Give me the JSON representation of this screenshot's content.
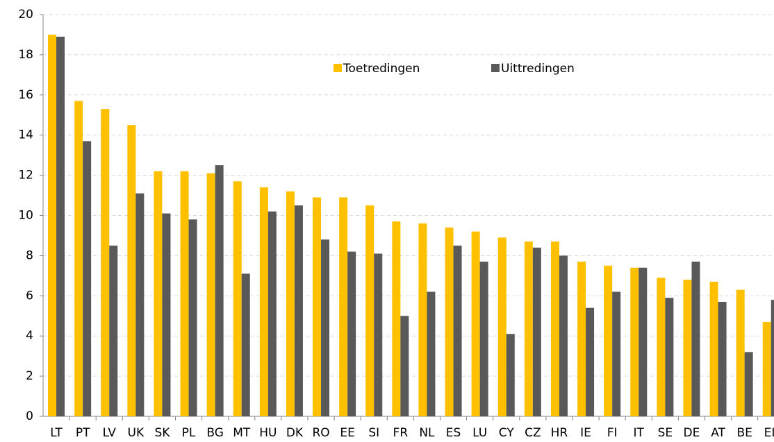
{
  "chart_data": {
    "type": "bar",
    "categories": [
      "LT",
      "PT",
      "LV",
      "UK",
      "SK",
      "PL",
      "BG",
      "MT",
      "HU",
      "DK",
      "RO",
      "EE",
      "SI",
      "FR",
      "NL",
      "ES",
      "LU",
      "CY",
      "CZ",
      "HR",
      "IE",
      "FI",
      "IT",
      "SE",
      "DE",
      "AT",
      "BE",
      "EL"
    ],
    "series": [
      {
        "name": "Toetredingen",
        "color": "#FFC000",
        "values": [
          19.0,
          15.7,
          15.3,
          14.5,
          12.2,
          12.2,
          12.1,
          11.7,
          11.4,
          11.2,
          10.9,
          10.9,
          10.5,
          9.7,
          9.6,
          9.4,
          9.2,
          8.9,
          8.7,
          8.7,
          7.7,
          7.5,
          7.4,
          6.9,
          6.8,
          6.7,
          6.3,
          4.7
        ]
      },
      {
        "name": "Uittredingen",
        "color": "#595959",
        "values": [
          18.9,
          13.7,
          8.5,
          11.1,
          10.1,
          9.8,
          12.5,
          7.1,
          10.2,
          10.5,
          8.8,
          8.2,
          8.1,
          5.0,
          6.2,
          8.5,
          7.7,
          4.1,
          8.4,
          8.0,
          5.4,
          6.2,
          7.4,
          5.9,
          7.7,
          5.7,
          3.2,
          5.8
        ]
      }
    ],
    "ylim": [
      0,
      20
    ],
    "yticks": [
      0,
      2,
      4,
      6,
      8,
      10,
      12,
      14,
      16,
      18,
      20
    ],
    "grid": true,
    "legend": "top"
  }
}
